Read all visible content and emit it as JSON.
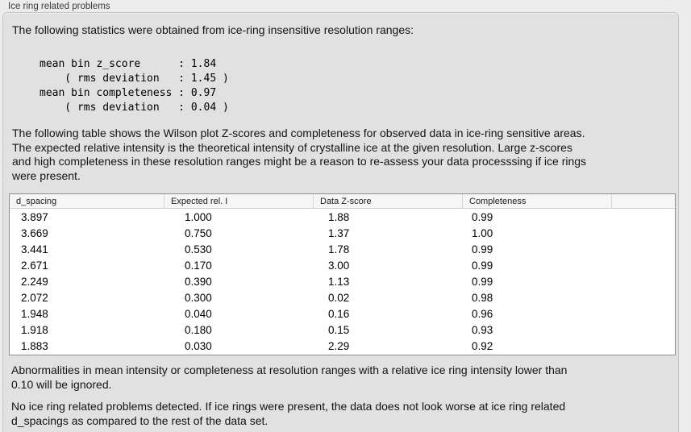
{
  "window": {
    "group_label": "Ice ring related problems"
  },
  "intro": {
    "text": "The following statistics were obtained from ice-ring insensitive resolution ranges:",
    "stats_block": "mean bin z_score      : 1.84\n    ( rms deviation   : 1.45 )\nmean bin completeness : 0.97\n    ( rms deviation   : 0.04 )",
    "stats": {
      "mean_bin_z_score": "1.84",
      "z_score_rms_deviation": "1.45",
      "mean_bin_completeness": "0.97",
      "completeness_rms_deviation": "0.04"
    }
  },
  "description": "The following table shows the Wilson plot Z-scores and completeness for observed data in ice-ring sensitive areas.\nThe expected relative intensity is the theoretical intensity of crystalline ice at the given resolution. Large z-scores\nand high completeness in these resolution ranges might be a reason to re-assess your data processsing if ice rings\nwere present.",
  "table": {
    "columns": [
      "d_spacing",
      "Expected rel. I",
      "Data Z-score",
      "Completeness"
    ],
    "rows": [
      [
        "3.897",
        "1.000",
        "1.88",
        "0.99"
      ],
      [
        "3.669",
        "0.750",
        "1.37",
        "1.00"
      ],
      [
        "3.441",
        "0.530",
        "1.78",
        "0.99"
      ],
      [
        "2.671",
        "0.170",
        "3.00",
        "0.99"
      ],
      [
        "2.249",
        "0.390",
        "1.13",
        "0.99"
      ],
      [
        "2.072",
        "0.300",
        "0.02",
        "0.98"
      ],
      [
        "1.948",
        "0.040",
        "0.16",
        "0.96"
      ],
      [
        "1.918",
        "0.180",
        "0.15",
        "0.93"
      ],
      [
        "1.883",
        "0.030",
        "2.29",
        "0.92"
      ]
    ]
  },
  "notes": {
    "ignore_note": "Abnormalities in mean intensity or completeness at resolution ranges with a relative ice ring intensity lower than\n0.10 will be ignored.",
    "conclusion": "No ice ring related problems detected. If ice rings were present, the data does not look worse at ice ring related\nd_spacings as compared to the rest of the data set."
  },
  "colors": {
    "page_bg": "#ececec",
    "panel_bg": "#e1e1e1",
    "panel_border": "#c6c6c6",
    "table_border": "#8e8e8e",
    "header_bg": "#f6f6f6",
    "text": "#141414"
  }
}
